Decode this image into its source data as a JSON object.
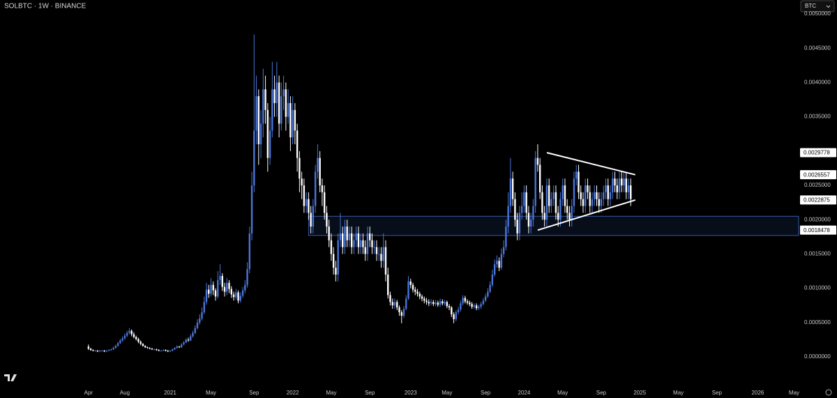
{
  "chart_data": {
    "type": "candlestick",
    "title": "SOLBTC · 1W · BINANCE",
    "symbol_button": "BTC",
    "up_color": "#4a76d9",
    "down_color": "#ffffff",
    "grid": false,
    "xlim": [
      -39,
      313
    ],
    "ylim": [
      -0.000386,
      0.005203
    ],
    "xticks": [
      {
        "value": 0,
        "label": "Apr"
      },
      {
        "value": 16,
        "label": "Aug"
      },
      {
        "value": 36,
        "label": "2021"
      },
      {
        "value": 54,
        "label": "May"
      },
      {
        "value": 73,
        "label": "Sep"
      },
      {
        "value": 90,
        "label": "2022"
      },
      {
        "value": 107,
        "label": "May"
      },
      {
        "value": 124,
        "label": "Sep"
      },
      {
        "value": 142,
        "label": "2023"
      },
      {
        "value": 158,
        "label": "May"
      },
      {
        "value": 175,
        "label": "Sep"
      },
      {
        "value": 192,
        "label": "2024"
      },
      {
        "value": 209,
        "label": "May"
      },
      {
        "value": 226,
        "label": "Sep"
      },
      {
        "value": 243,
        "label": "2025"
      },
      {
        "value": 260,
        "label": "May"
      },
      {
        "value": 277,
        "label": "Sep"
      },
      {
        "value": 295,
        "label": "2026"
      },
      {
        "value": 311,
        "label": "May"
      }
    ],
    "yticks": [
      {
        "value": 0,
        "label": "0.0000000"
      },
      {
        "value": 0.0005,
        "label": "0.0005000"
      },
      {
        "value": 0.001,
        "label": "0.0010000"
      },
      {
        "value": 0.0015,
        "label": "0.0015000"
      },
      {
        "value": 0.002,
        "label": "0.0020000"
      },
      {
        "value": 0.0025,
        "label": "0.0025000"
      },
      {
        "value": 0.003,
        "label": "0.0030000"
      },
      {
        "value": 0.0035,
        "label": "0.0035000"
      },
      {
        "value": 0.004,
        "label": "0.0040000"
      },
      {
        "value": 0.0045,
        "label": "0.0045000"
      },
      {
        "value": 0.005,
        "label": "0.0050000"
      }
    ],
    "price_labels": [
      0.0029778,
      0.0026557,
      0.0022875,
      0.0018478
    ],
    "trendlines": [
      {
        "x": [
          202,
          241
        ],
        "y": [
          0.0029778,
          0.0026557
        ]
      },
      {
        "x": [
          198,
          241
        ],
        "y": [
          0.0018478,
          0.0022875
        ]
      }
    ],
    "zone": {
      "x_start": 97,
      "y": [
        0.00177,
        0.00205
      ]
    },
    "open": [
      0.00015,
      0.00012,
      0.0001,
      9e-05,
      9e-05,
      8e-05,
      9e-05,
      9e-05,
      8e-05,
      9e-05,
      0.0001,
      0.00011,
      0.00013,
      0.00016,
      0.0002,
      0.00024,
      0.00027,
      0.00031,
      0.00035,
      0.00038,
      0.00033,
      0.00029,
      0.00026,
      0.00022,
      0.00019,
      0.00016,
      0.00014,
      0.00013,
      0.00012,
      0.00011,
      0.00011,
      0.0001,
      9e-05,
      9e-05,
      0.0001,
      9e-05,
      8e-05,
      9e-05,
      0.00011,
      0.00013,
      0.00015,
      0.00014,
      0.00018,
      0.00021,
      0.00025,
      0.00024,
      0.0003,
      0.00035,
      0.00042,
      0.0005,
      0.00056,
      0.00065,
      0.0008,
      0.00098,
      0.00092,
      0.00105,
      0.00097,
      0.00088,
      0.00112,
      0.00118,
      0.00102,
      0.00095,
      0.00108,
      0.00099,
      0.00091,
      0.00087,
      0.00094,
      0.00082,
      0.00089,
      0.00097,
      0.00105,
      0.00128,
      0.0018,
      0.0025,
      0.0033,
      0.0038,
      0.0031,
      0.0034,
      0.0039,
      0.0036,
      0.0029,
      0.0033,
      0.0039,
      0.0037,
      0.004,
      0.0034,
      0.0038,
      0.0039,
      0.0035,
      0.0037,
      0.0032,
      0.0036,
      0.0033,
      0.0029,
      0.0026,
      0.0025,
      0.0022,
      0.0023,
      0.0021,
      0.0019,
      0.0022,
      0.0027,
      0.0029,
      0.0025,
      0.0024,
      0.0021,
      0.0019,
      0.0017,
      0.0015,
      0.0013,
      0.0012,
      0.0017,
      0.0018,
      0.0016,
      0.0019,
      0.0017,
      0.0018,
      0.0016,
      0.0017,
      0.0018,
      0.0016,
      0.0017,
      0.0016,
      0.0015,
      0.0018,
      0.0017,
      0.0016,
      0.0016,
      0.0015,
      0.0015,
      0.0014,
      0.0016,
      0.0012,
      0.0009,
      0.0008,
      0.00075,
      0.0008,
      0.00072,
      0.00065,
      0.0006,
      0.0007,
      0.00085,
      0.0011,
      0.00105,
      0.00098,
      0.00095,
      0.00092,
      0.00088,
      0.00085,
      0.00082,
      0.0008,
      0.00078,
      0.0008,
      0.00077,
      0.00079,
      0.00076,
      0.00081,
      0.00078,
      0.0008,
      0.00074,
      0.00072,
      0.00062,
      0.00055,
      0.00065,
      0.00069,
      0.00078,
      0.00086,
      0.00081,
      0.00079,
      0.00077,
      0.00073,
      0.00075,
      0.00071,
      0.00073,
      0.00077,
      0.00082,
      0.00088,
      0.00095,
      0.00105,
      0.0012,
      0.00135,
      0.0014,
      0.0013,
      0.0015,
      0.0016,
      0.0019,
      0.0022,
      0.0026,
      0.0023,
      0.002,
      0.0018,
      0.0021,
      0.0022,
      0.0024,
      0.0021,
      0.0019,
      0.002,
      0.0022,
      0.0029,
      0.0028,
      0.0024,
      0.0021,
      0.002,
      0.0025,
      0.0022,
      0.0023,
      0.0024,
      0.0021,
      0.002,
      0.0023,
      0.0025,
      0.0022,
      0.0021,
      0.002,
      0.0022,
      0.0026,
      0.0027,
      0.0024,
      0.0023,
      0.0022,
      0.0025,
      0.0024,
      0.0022,
      0.0023,
      0.0024,
      0.0023,
      0.0022,
      0.0023,
      0.0024,
      0.0025,
      0.0023,
      0.0024,
      0.0026,
      0.0025,
      0.0024,
      0.0026,
      0.0025,
      0.0026,
      0.0024,
      0.0025
    ],
    "high": [
      0.00018,
      0.00013,
      0.00011,
      0.0001,
      0.0001,
      0.0001,
      0.0001,
      0.0001,
      0.0001,
      0.00011,
      0.00012,
      0.00015,
      0.00018,
      0.00022,
      0.00026,
      0.0003,
      0.00034,
      0.00038,
      0.00042,
      0.0004,
      0.00036,
      0.00031,
      0.00028,
      0.00024,
      0.0002,
      0.00017,
      0.00015,
      0.00014,
      0.00013,
      0.00012,
      0.00012,
      0.00011,
      0.0001,
      0.00011,
      0.00011,
      0.0001,
      0.0001,
      0.00012,
      0.00014,
      0.00017,
      0.00016,
      0.0002,
      0.00023,
      0.00027,
      0.00028,
      0.00033,
      0.00038,
      0.00046,
      0.00055,
      0.00062,
      0.00072,
      0.00088,
      0.00108,
      0.00105,
      0.00115,
      0.0011,
      0.001,
      0.00125,
      0.00135,
      0.00122,
      0.00108,
      0.00115,
      0.00112,
      0.00103,
      0.00095,
      0.00099,
      0.00097,
      0.00094,
      0.00102,
      0.00112,
      0.00138,
      0.0019,
      0.0027,
      0.0047,
      0.0041,
      0.0039,
      0.0036,
      0.0042,
      0.0041,
      0.0037,
      0.0035,
      0.0043,
      0.0041,
      0.0043,
      0.0041,
      0.004,
      0.0041,
      0.004,
      0.0039,
      0.0038,
      0.0038,
      0.0037,
      0.0034,
      0.003,
      0.0027,
      0.0026,
      0.0024,
      0.0024,
      0.0022,
      0.0023,
      0.0028,
      0.0031,
      0.003,
      0.0026,
      0.0025,
      0.0022,
      0.002,
      0.0018,
      0.0016,
      0.0014,
      0.0018,
      0.0021,
      0.0019,
      0.002,
      0.002,
      0.0019,
      0.0019,
      0.0018,
      0.0019,
      0.0019,
      0.0018,
      0.0018,
      0.0017,
      0.0019,
      0.0019,
      0.0018,
      0.0017,
      0.0017,
      0.0016,
      0.0016,
      0.0018,
      0.0017,
      0.0013,
      0.00095,
      0.00085,
      0.00085,
      0.00083,
      0.00075,
      0.00068,
      0.00074,
      0.0009,
      0.00118,
      0.00114,
      0.00108,
      0.00102,
      0.00099,
      0.00095,
      0.00091,
      0.00088,
      0.00086,
      0.00084,
      0.00084,
      0.00083,
      0.00083,
      0.00082,
      0.00085,
      0.00084,
      0.00083,
      0.00082,
      0.00077,
      0.00074,
      0.00065,
      0.00068,
      0.00073,
      0.00082,
      0.0009,
      0.00089,
      0.00084,
      0.00082,
      0.0008,
      0.00078,
      0.00078,
      0.00076,
      0.0008,
      0.00086,
      0.00092,
      0.001,
      0.0011,
      0.00127,
      0.00142,
      0.00148,
      0.00145,
      0.00158,
      0.0017,
      0.002,
      0.0024,
      0.0029,
      0.0027,
      0.0024,
      0.0021,
      0.0022,
      0.0024,
      0.0025,
      0.0025,
      0.0022,
      0.0021,
      0.0023,
      0.003,
      0.0031,
      0.0029,
      0.0025,
      0.0022,
      0.0026,
      0.0026,
      0.0024,
      0.0025,
      0.0025,
      0.0022,
      0.0024,
      0.0026,
      0.0026,
      0.0023,
      0.0022,
      0.0023,
      0.0027,
      0.0028,
      0.0028,
      0.0025,
      0.0024,
      0.0026,
      0.0026,
      0.0025,
      0.0024,
      0.0025,
      0.0025,
      0.0024,
      0.0024,
      0.0025,
      0.0026,
      0.0026,
      0.0025,
      0.0027,
      0.0027,
      0.0026,
      0.0027,
      0.0027,
      0.0027,
      0.0027,
      0.0026,
      0.0026
    ],
    "low": [
      0.0001,
      9e-05,
      8e-05,
      8e-05,
      7e-05,
      7e-05,
      8e-05,
      7e-05,
      7e-05,
      8e-05,
      9e-05,
      0.0001,
      0.00012,
      0.00015,
      0.00019,
      0.00022,
      0.00025,
      0.00029,
      0.00033,
      0.0003,
      0.00027,
      0.00024,
      0.0002,
      0.00017,
      0.00015,
      0.00013,
      0.00012,
      0.00011,
      0.0001,
      0.0001,
      9e-05,
      8e-05,
      8e-05,
      8e-05,
      8e-05,
      7e-05,
      7e-05,
      8e-05,
      0.0001,
      0.00012,
      0.00013,
      0.00013,
      0.00017,
      0.0002,
      0.00022,
      0.00023,
      0.00028,
      0.00033,
      0.0004,
      0.00047,
      0.00053,
      0.00062,
      0.00076,
      0.00086,
      0.00088,
      0.0009,
      0.00082,
      0.00085,
      0.00105,
      0.00096,
      0.00088,
      0.0009,
      0.00093,
      0.00086,
      0.00082,
      0.00083,
      0.00078,
      0.00079,
      0.00086,
      0.00093,
      0.00101,
      0.00122,
      0.0017,
      0.0024,
      0.0031,
      0.0028,
      0.0029,
      0.0032,
      0.0034,
      0.0027,
      0.0028,
      0.0032,
      0.0035,
      0.0035,
      0.0032,
      0.0033,
      0.0036,
      0.0033,
      0.0034,
      0.003,
      0.0031,
      0.0031,
      0.0027,
      0.0024,
      0.0023,
      0.0021,
      0.0021,
      0.002,
      0.0018,
      0.0018,
      0.0021,
      0.0026,
      0.0024,
      0.0022,
      0.002,
      0.0018,
      0.0016,
      0.0014,
      0.0012,
      0.0011,
      0.0011,
      0.0016,
      0.0015,
      0.0015,
      0.0016,
      0.0016,
      0.0015,
      0.0015,
      0.0016,
      0.0015,
      0.0015,
      0.0015,
      0.0014,
      0.0014,
      0.0016,
      0.0015,
      0.0015,
      0.0014,
      0.0014,
      0.0013,
      0.0013,
      0.0011,
      0.00085,
      0.00075,
      0.0007,
      0.0007,
      0.00068,
      0.0006,
      0.00049,
      0.00057,
      0.00068,
      0.00083,
      0.001,
      0.00094,
      0.0009,
      0.00088,
      0.00084,
      0.00081,
      0.00078,
      0.00076,
      0.00074,
      0.00075,
      0.00074,
      0.00074,
      0.00073,
      0.00073,
      0.00075,
      0.00075,
      0.00071,
      0.00068,
      0.00058,
      0.00049,
      0.00052,
      0.00062,
      0.00066,
      0.00075,
      0.00078,
      0.00076,
      0.00074,
      0.0007,
      0.0007,
      0.00068,
      0.00068,
      0.0007,
      0.00075,
      0.0008,
      0.00086,
      0.00093,
      0.00102,
      0.00117,
      0.0013,
      0.00125,
      0.00127,
      0.00145,
      0.00155,
      0.0018,
      0.0021,
      0.0022,
      0.0019,
      0.0017,
      0.0017,
      0.002,
      0.0021,
      0.002,
      0.0018,
      0.0018,
      0.0019,
      0.0021,
      0.0027,
      0.0023,
      0.002,
      0.0019,
      0.0019,
      0.0021,
      0.0021,
      0.0022,
      0.002,
      0.0019,
      0.0019,
      0.0022,
      0.0021,
      0.002,
      0.0019,
      0.0019,
      0.0021,
      0.0025,
      0.0023,
      0.0022,
      0.0021,
      0.0021,
      0.0023,
      0.0021,
      0.0021,
      0.0022,
      0.0022,
      0.0021,
      0.0021,
      0.0022,
      0.0023,
      0.0022,
      0.0022,
      0.0023,
      0.0024,
      0.0023,
      0.0023,
      0.0024,
      0.0024,
      0.0023,
      0.0023,
      0.0022
    ],
    "close": [
      0.00012,
      0.0001,
      9e-05,
      9e-05,
      8e-05,
      9e-05,
      9e-05,
      8e-05,
      9e-05,
      0.0001,
      0.00011,
      0.00013,
      0.00016,
      0.0002,
      0.00024,
      0.00027,
      0.00031,
      0.00035,
      0.00038,
      0.00033,
      0.00029,
      0.00026,
      0.00022,
      0.00019,
      0.00016,
      0.00014,
      0.00013,
      0.00012,
      0.00011,
      0.00011,
      0.0001,
      9e-05,
      9e-05,
      0.0001,
      9e-05,
      8e-05,
      9e-05,
      0.00011,
      0.00013,
      0.00015,
      0.00014,
      0.00018,
      0.00021,
      0.00025,
      0.00024,
      0.0003,
      0.00035,
      0.00042,
      0.0005,
      0.00056,
      0.00065,
      0.0008,
      0.00098,
      0.00092,
      0.00105,
      0.00097,
      0.00088,
      0.00112,
      0.00118,
      0.00102,
      0.00095,
      0.00108,
      0.00099,
      0.00091,
      0.00087,
      0.00094,
      0.00082,
      0.00089,
      0.00097,
      0.00105,
      0.00128,
      0.0018,
      0.0025,
      0.0033,
      0.0038,
      0.0031,
      0.0034,
      0.0039,
      0.0036,
      0.0029,
      0.0033,
      0.0039,
      0.0037,
      0.004,
      0.0034,
      0.0038,
      0.0039,
      0.0035,
      0.0037,
      0.0032,
      0.0036,
      0.0033,
      0.0029,
      0.0026,
      0.0025,
      0.0022,
      0.0023,
      0.0021,
      0.0019,
      0.0022,
      0.0027,
      0.0029,
      0.0025,
      0.0024,
      0.0021,
      0.0019,
      0.0017,
      0.0015,
      0.0013,
      0.0012,
      0.0017,
      0.0018,
      0.0016,
      0.0019,
      0.0017,
      0.0018,
      0.0016,
      0.0017,
      0.0018,
      0.0016,
      0.0017,
      0.0016,
      0.0015,
      0.0018,
      0.0017,
      0.0016,
      0.0016,
      0.0015,
      0.0015,
      0.0014,
      0.0016,
      0.0012,
      0.0009,
      0.0008,
      0.00075,
      0.0008,
      0.00072,
      0.00065,
      0.0006,
      0.0007,
      0.00085,
      0.0011,
      0.00105,
      0.00098,
      0.00095,
      0.00092,
      0.00088,
      0.00085,
      0.00082,
      0.0008,
      0.00078,
      0.0008,
      0.00077,
      0.00079,
      0.00076,
      0.00081,
      0.00078,
      0.0008,
      0.00074,
      0.00072,
      0.00062,
      0.00055,
      0.00065,
      0.00069,
      0.00078,
      0.00086,
      0.00081,
      0.00079,
      0.00077,
      0.00073,
      0.00075,
      0.00071,
      0.00073,
      0.00077,
      0.00082,
      0.00088,
      0.00095,
      0.00105,
      0.0012,
      0.00135,
      0.0014,
      0.0013,
      0.0015,
      0.0016,
      0.0019,
      0.0022,
      0.0026,
      0.0023,
      0.002,
      0.0018,
      0.0021,
      0.0022,
      0.0024,
      0.0021,
      0.0019,
      0.002,
      0.0022,
      0.0029,
      0.0028,
      0.0024,
      0.0021,
      0.002,
      0.0025,
      0.0022,
      0.0023,
      0.0024,
      0.0021,
      0.002,
      0.0023,
      0.0025,
      0.0022,
      0.0021,
      0.002,
      0.0022,
      0.0026,
      0.0027,
      0.0024,
      0.0023,
      0.0022,
      0.0025,
      0.0024,
      0.0022,
      0.0023,
      0.0024,
      0.0023,
      0.0022,
      0.0023,
      0.0024,
      0.0025,
      0.0023,
      0.0024,
      0.0026,
      0.0025,
      0.0024,
      0.0026,
      0.0025,
      0.0026,
      0.0024,
      0.0025,
      0.0023
    ]
  }
}
